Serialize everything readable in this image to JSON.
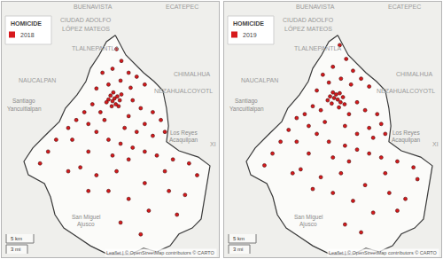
{
  "chart_data": [
    {
      "type": "scatter",
      "legend": "upper left",
      "tick_labels": false,
      "grid": false,
      "xlim": [
        -99.415,
        -98.876
      ],
      "ylim": [
        19.032,
        19.68
      ],
      "legend_title": "HOMICIDE",
      "series": [
        {
          "name": "2018",
          "color": "#d7191c",
          "marker": "circle",
          "x": [
            -99.135,
            -99.14,
            -99.128,
            -99.145,
            -99.132,
            -99.15,
            -99.122,
            -99.138,
            -99.125,
            -99.155,
            -99.118,
            -99.142,
            -99.13,
            -99.118,
            -99.14,
            -99.1,
            -99.165,
            -99.08,
            -99.12,
            -99.15,
            -99.06,
            -99.18,
            -99.095,
            -99.09,
            -99.07,
            -99.04,
            -99.02,
            -99.06,
            -99.1,
            -99.08,
            -99.04,
            -99.01,
            -99.11,
            -99.19,
            -99.21,
            -99.23,
            -99.2,
            -99.25,
            -99.28,
            -99.3,
            -99.32,
            -99.24,
            -99.18,
            -99.16,
            -99.17,
            -99.15,
            -99.12,
            -99.09,
            -99.06,
            -99.03,
            -98.99,
            -98.95,
            -98.93,
            -99.01,
            -99.1,
            -99.14,
            -99.2,
            -99.22,
            -99.18,
            -99.13,
            -99.06,
            -99.0,
            -98.96,
            -99.1,
            -99.15,
            -99.2,
            -99.05,
            -98.98,
            -99.12,
            -99.07,
            -99.25
          ],
          "y": [
            19.435,
            19.428,
            19.44,
            19.442,
            19.42,
            19.432,
            19.43,
            19.45,
            19.415,
            19.425,
            19.445,
            19.415,
            19.56,
            19.53,
            19.51,
            19.5,
            19.5,
            19.49,
            19.48,
            19.47,
            19.47,
            19.46,
            19.462,
            19.43,
            19.41,
            19.4,
            19.38,
            19.37,
            19.39,
            19.35,
            19.34,
            19.35,
            19.36,
            19.42,
            19.4,
            19.38,
            19.37,
            19.36,
            19.33,
            19.3,
            19.27,
            19.33,
            19.35,
            19.38,
            19.4,
            19.33,
            19.32,
            19.31,
            19.3,
            19.29,
            19.28,
            19.27,
            19.24,
            19.25,
            19.28,
            19.29,
            19.3,
            19.26,
            19.24,
            19.25,
            19.22,
            19.2,
            19.19,
            19.18,
            19.2,
            19.2,
            19.15,
            19.14,
            19.12,
            19.09,
            19.25
          ]
        }
      ],
      "boundary": {
        "x": [
          -99.133,
          -99.107,
          -99.063,
          -99.037,
          -99.015,
          -99.006,
          -99.001,
          -99.006,
          -98.975,
          -98.927,
          -98.898,
          -98.905,
          -98.913,
          -98.92,
          -98.942,
          -98.975,
          -98.997,
          -99.03,
          -99.063,
          -99.096,
          -99.151,
          -99.195,
          -99.228,
          -99.261,
          -99.283,
          -99.294,
          -99.309,
          -99.349,
          -99.36,
          -99.338,
          -99.305,
          -99.272,
          -99.257,
          -99.228,
          -99.206,
          -99.195,
          -99.173,
          -99.155,
          -99.133
        ],
        "y": [
          19.595,
          19.545,
          19.5,
          19.478,
          19.455,
          19.41,
          19.365,
          19.325,
          19.302,
          19.286,
          19.264,
          19.219,
          19.174,
          19.129,
          19.106,
          19.091,
          19.061,
          19.046,
          19.055,
          19.039,
          19.039,
          19.061,
          19.084,
          19.106,
          19.14,
          19.185,
          19.219,
          19.241,
          19.275,
          19.309,
          19.343,
          19.376,
          19.41,
          19.444,
          19.478,
          19.511,
          19.545,
          19.579,
          19.595
        ]
      },
      "place_labels": [
        {
          "text": "BUENAVISTA",
          "x": -99.188,
          "y": 19.667
        },
        {
          "text": "ECATEPEC",
          "x": -98.968,
          "y": 19.667
        },
        {
          "text": "CIUDAD ADOLFO",
          "x": -99.206,
          "y": 19.635
        },
        {
          "text": "LÓPEZ MATEOS",
          "x": -99.206,
          "y": 19.613
        },
        {
          "text": "TLALNEPANTLA",
          "x": -99.184,
          "y": 19.563
        },
        {
          "text": "NAUCALPAN",
          "x": -99.327,
          "y": 19.482
        },
        {
          "text": "CHIMALHUA",
          "x": -98.942,
          "y": 19.496
        },
        {
          "text": "NEZAHUALCOYOTL",
          "x": -98.964,
          "y": 19.455
        },
        {
          "text": "Santiago",
          "x": -99.36,
          "y": 19.428
        },
        {
          "text": "Yancuitlalpan",
          "x": -99.36,
          "y": 19.408
        },
        {
          "text": "Los Reyes",
          "x": -98.964,
          "y": 19.347
        },
        {
          "text": "Acaquilpan",
          "x": -98.964,
          "y": 19.329
        },
        {
          "text": "XI",
          "x": -98.891,
          "y": 19.32
        },
        {
          "text": "San Miguel",
          "x": -99.206,
          "y": 19.133
        },
        {
          "text": "Ajusco",
          "x": -99.206,
          "y": 19.115
        }
      ],
      "scale_labels": [
        "5 km",
        "3 mi"
      ],
      "attribution": "Leaflet | © OpenStreetMap contributors © CARTO"
    },
    {
      "type": "scatter",
      "legend": "upper left",
      "tick_labels": false,
      "grid": false,
      "xlim": [
        -99.415,
        -98.876
      ],
      "ylim": [
        19.032,
        19.68
      ],
      "legend_title": "HOMICIDE",
      "series": [
        {
          "name": "2019",
          "color": "#d7191c",
          "marker": "circle",
          "x": [
            -99.133,
            -99.142,
            -99.126,
            -99.148,
            -99.137,
            -99.12,
            -99.152,
            -99.13,
            -99.145,
            -99.116,
            -99.158,
            -99.128,
            -99.128,
            -99.112,
            -99.145,
            -99.095,
            -99.17,
            -99.075,
            -99.125,
            -99.155,
            -99.055,
            -99.185,
            -99.1,
            -99.085,
            -99.065,
            -99.035,
            -99.025,
            -99.055,
            -99.105,
            -99.085,
            -99.045,
            -99.015,
            -99.115,
            -99.195,
            -99.215,
            -99.235,
            -99.205,
            -99.255,
            -99.275,
            -99.295,
            -99.315,
            -99.235,
            -99.185,
            -99.165,
            -99.175,
            -99.155,
            -99.115,
            -99.085,
            -99.055,
            -99.025,
            -98.985,
            -98.945,
            -98.935,
            -99.015,
            -99.105,
            -99.145,
            -99.205,
            -99.225,
            -99.175,
            -99.125,
            -99.065,
            -99.005,
            -98.965,
            -99.095,
            -99.145,
            -99.195,
            -99.045,
            -98.985,
            -99.115,
            -99.075,
            -99.245
          ],
          "y": [
            19.432,
            19.436,
            19.425,
            19.422,
            19.445,
            19.438,
            19.44,
            19.412,
            19.45,
            19.42,
            19.43,
            19.448,
            19.57,
            19.535,
            19.515,
            19.505,
            19.495,
            19.485,
            19.485,
            19.475,
            19.465,
            19.455,
            19.47,
            19.425,
            19.405,
            19.395,
            19.37,
            19.36,
            19.395,
            19.345,
            19.335,
            19.345,
            19.365,
            19.415,
            19.395,
            19.385,
            19.365,
            19.355,
            19.325,
            19.295,
            19.265,
            19.325,
            19.345,
            19.375,
            19.405,
            19.325,
            19.315,
            19.305,
            19.295,
            19.285,
            19.275,
            19.26,
            19.23,
            19.245,
            19.275,
            19.285,
            19.295,
            19.255,
            19.235,
            19.245,
            19.215,
            19.195,
            19.18,
            19.175,
            19.195,
            19.205,
            19.145,
            19.15,
            19.115,
            19.095,
            19.245
          ]
        }
      ],
      "boundary": {
        "x": [
          -99.133,
          -99.107,
          -99.063,
          -99.037,
          -99.015,
          -99.006,
          -99.001,
          -99.006,
          -98.975,
          -98.927,
          -98.898,
          -98.905,
          -98.913,
          -98.92,
          -98.942,
          -98.975,
          -98.997,
          -99.03,
          -99.063,
          -99.096,
          -99.151,
          -99.195,
          -99.228,
          -99.261,
          -99.283,
          -99.294,
          -99.309,
          -99.349,
          -99.36,
          -99.338,
          -99.305,
          -99.272,
          -99.257,
          -99.228,
          -99.206,
          -99.195,
          -99.173,
          -99.155,
          -99.133
        ],
        "y": [
          19.595,
          19.545,
          19.5,
          19.478,
          19.455,
          19.41,
          19.365,
          19.325,
          19.302,
          19.286,
          19.264,
          19.219,
          19.174,
          19.129,
          19.106,
          19.091,
          19.061,
          19.046,
          19.055,
          19.039,
          19.039,
          19.061,
          19.084,
          19.106,
          19.14,
          19.185,
          19.219,
          19.241,
          19.275,
          19.309,
          19.343,
          19.376,
          19.41,
          19.444,
          19.478,
          19.511,
          19.545,
          19.579,
          19.595
        ]
      },
      "place_labels": [
        {
          "text": "BUENAVISTA",
          "x": -99.188,
          "y": 19.667
        },
        {
          "text": "ECATEPEC",
          "x": -98.968,
          "y": 19.667
        },
        {
          "text": "CIUDAD ADOLFO",
          "x": -99.206,
          "y": 19.635
        },
        {
          "text": "LÓPEZ MATEOS",
          "x": -99.206,
          "y": 19.613
        },
        {
          "text": "TLALNEPANTLA",
          "x": -99.184,
          "y": 19.563
        },
        {
          "text": "NAUCALPAN",
          "x": -99.327,
          "y": 19.482
        },
        {
          "text": "CHIMALHUA",
          "x": -98.942,
          "y": 19.496
        },
        {
          "text": "NEZAHUALCOYOTL",
          "x": -98.964,
          "y": 19.455
        },
        {
          "text": "Santiago",
          "x": -99.36,
          "y": 19.428
        },
        {
          "text": "Yancuitlalpan",
          "x": -99.36,
          "y": 19.408
        },
        {
          "text": "Los Reyes",
          "x": -98.964,
          "y": 19.347
        },
        {
          "text": "Acaquilpan",
          "x": -98.964,
          "y": 19.329
        },
        {
          "text": "XI",
          "x": -98.891,
          "y": 19.32
        },
        {
          "text": "San Miguel",
          "x": -99.206,
          "y": 19.133
        },
        {
          "text": "Ajusco",
          "x": -99.206,
          "y": 19.115
        }
      ],
      "scale_labels": [
        "5 km",
        "3 mi"
      ],
      "attribution": "Leaflet | © OpenStreetMap contributors © CARTO"
    }
  ]
}
